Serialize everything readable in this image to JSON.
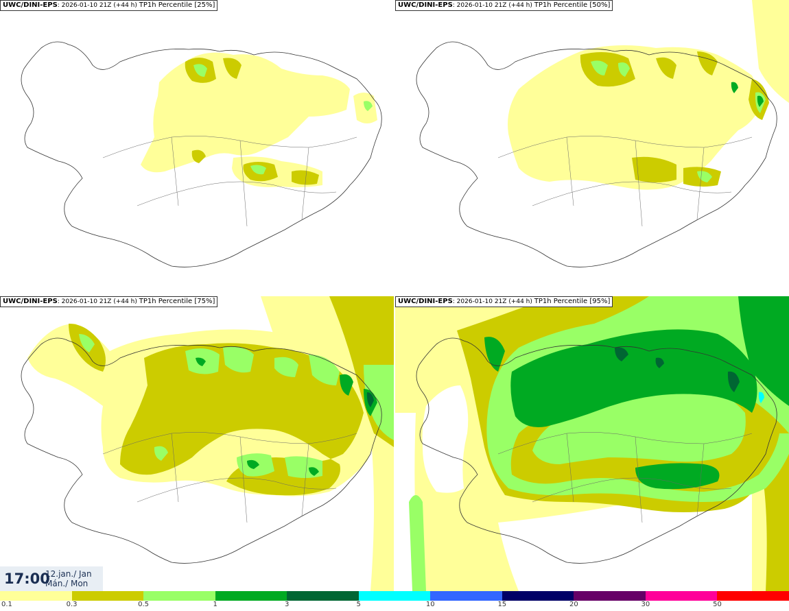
{
  "panels": [
    {
      "model": "UWC/DINI-EPS",
      "run": "2026-01-10 21Z (+44 h)",
      "param": "TP1h Percentile [25%]"
    },
    {
      "model": "UWC/DINI-EPS",
      "run": "2026-01-10 21Z (+44 h)",
      "param": "TP1h Percentile [50%]"
    },
    {
      "model": "UWC/DINI-EPS",
      "run": "2026-01-10 21Z (+44 h)",
      "param": "TP1h Percentile [75%]"
    },
    {
      "model": "UWC/DINI-EPS",
      "run": "2026-01-10 21Z (+44 h)",
      "param": "TP1h Percentile [95%]"
    }
  ],
  "time": {
    "clock": "17:00",
    "date_line1": "12.jan./ Jan",
    "date_line2": "Mán./ Mon"
  },
  "legend": {
    "colors": [
      "#ffff99",
      "#cccc00",
      "#99ff66",
      "#00aa22",
      "#006633",
      "#00ffff",
      "#3366ff",
      "#000066",
      "#660066",
      "#ff0099",
      "#ff0000"
    ],
    "labels": [
      "0.1",
      "0.3",
      "0.5",
      "1",
      "3",
      "5",
      "10",
      "15",
      "20",
      "30",
      "50"
    ]
  }
}
